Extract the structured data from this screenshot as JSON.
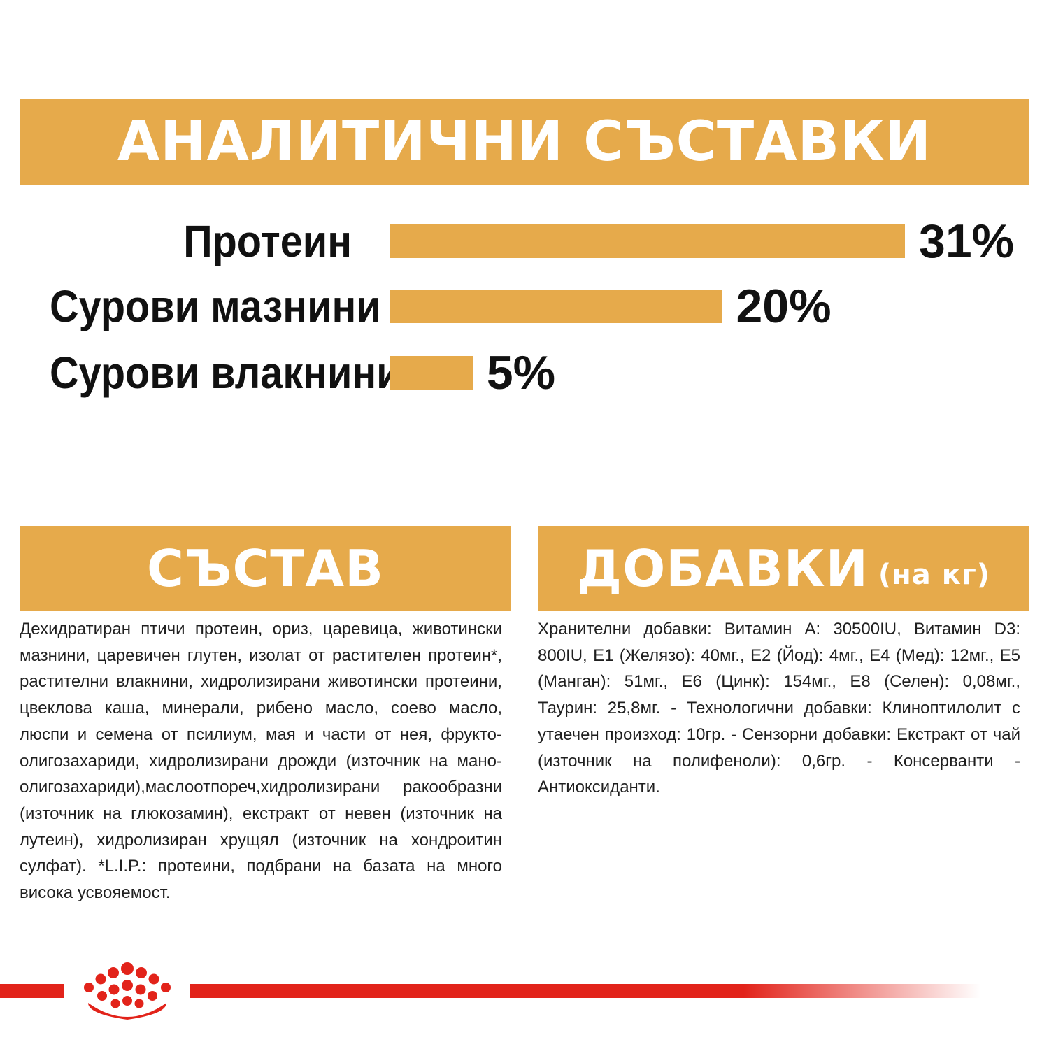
{
  "headings": {
    "analytical": "АНАЛИТИЧНИ СЪСТАВКИ",
    "composition": "СЪСТАВ",
    "additives": "ДОБАВКИ",
    "additives_suffix": "(на кг)"
  },
  "chart_data": {
    "type": "bar",
    "orientation": "horizontal",
    "categories": [
      "Протеин",
      "Сурови мазнини",
      "Сурови влакнини"
    ],
    "values": [
      31,
      20,
      5
    ],
    "value_labels": [
      "31%",
      "20%",
      "5%"
    ],
    "unit": "%",
    "xlim": [
      0,
      31
    ]
  },
  "composition_text": "Дехидратиран птичи протеин, ориз, царевица, животински мазнини, царевичен глутен, изолат от растителен протеин*, растителни влакнини, хидролизирани животински протеини, цвеклова каша, минерали, рибено масло, соево масло, люспи и семена от псилиум, мая и части от нея, фрукто-олигозахариди, хидролизирани дрожди (източник на мано-олигозахариди),маслоотпореч,хидролизирани ракообразни (източник на глюкозамин), екстракт от невен (източник на лутеин), хидролизиран хрущял (източник на хондроитин сулфат). *L.I.P.: протеини, подбрани на базата на много висока усвояемост.",
  "additives_text": "Хранителни добавки: Витамин А: 30500IU, Витамин D3: 800IU, Е1 (Желязо): 40мг., Е2 (Йод): 4мг., Е4 (Мед): 12мг., Е5 (Манган): 51мг., Е6 (Цинк): 154мг., Е8 (Селен): 0,08мг., Таурин: 25,8мг. - Технологични добавки: Клиноптилолит с утаечен произход: 10гр. - Сензорни добавки: Екстракт от чай (източник на полифеноли): 0,6гр. - Консерванти - Антиоксиданти.",
  "colors": {
    "accent": "#e6aa4b",
    "brand_red": "#e2231a",
    "text": "#1a1a1a"
  },
  "logo": "royal-canin-crown-logo"
}
